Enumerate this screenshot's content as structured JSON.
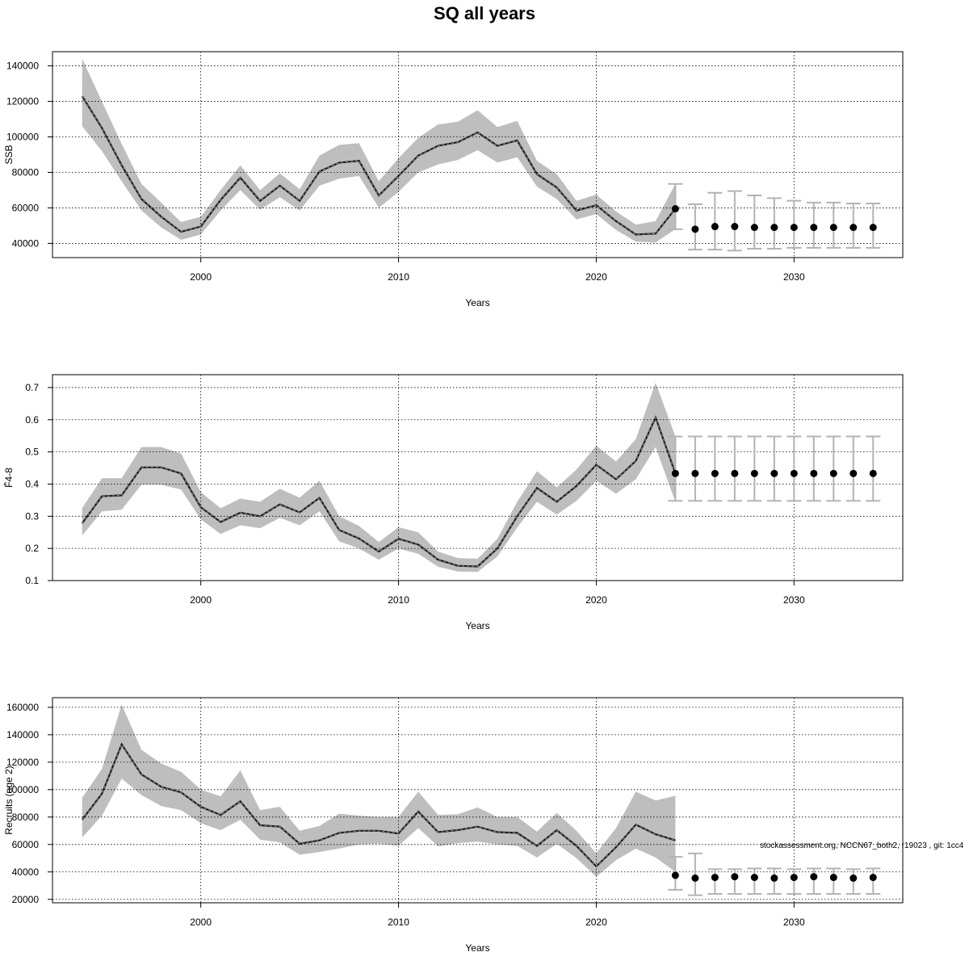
{
  "figure": {
    "title": "SQ all years",
    "footer": "stockassessment.org, NCCN67_both2, r19023 , git: 1cc4"
  },
  "colors": {
    "band": "#bebebe",
    "line": "#1a1a1a",
    "errorbar": "#b3b3b3",
    "point": "#000000",
    "grid": "#000000"
  },
  "chart_data": [
    {
      "type": "line",
      "title": "",
      "xlabel": "Years",
      "ylabel": "SSB",
      "xlim": [
        1992.5,
        2035.5
      ],
      "ylim": [
        32000,
        148000
      ],
      "xticks": [
        2000,
        2010,
        2020,
        2030
      ],
      "yticks": [
        40000,
        60000,
        80000,
        100000,
        120000,
        140000
      ],
      "grid": true,
      "estimate": {
        "x": [
          1994,
          1995,
          1996,
          1997,
          1998,
          1999,
          2000,
          2001,
          2002,
          2003,
          2004,
          2005,
          2006,
          2007,
          2008,
          2009,
          2010,
          2011,
          2012,
          2013,
          2014,
          2015,
          2016,
          2017,
          2018,
          2019,
          2020,
          2021,
          2022,
          2023,
          2024
        ],
        "y": [
          123000,
          105000,
          84000,
          65000,
          55000,
          46500,
          49500,
          64500,
          77000,
          64000,
          72500,
          64000,
          80500,
          85500,
          86500,
          67000,
          78000,
          89500,
          95000,
          97000,
          102500,
          95000,
          98000,
          79000,
          71500,
          58500,
          61500,
          52500,
          45000,
          45500,
          59500
        ],
        "lower": [
          106000,
          92000,
          75000,
          58500,
          49000,
          42000,
          45000,
          58500,
          70000,
          59000,
          66000,
          58500,
          72500,
          76500,
          78000,
          60000,
          69000,
          80000,
          84500,
          87000,
          92500,
          85500,
          88500,
          72000,
          65000,
          53500,
          56500,
          47500,
          41000,
          40500,
          48000
        ],
        "upper": [
          144000,
          120000,
          96000,
          73500,
          63000,
          52000,
          55000,
          70000,
          84000,
          70000,
          79500,
          70500,
          89500,
          95500,
          96500,
          75000,
          88000,
          99500,
          107000,
          108500,
          115000,
          105500,
          109000,
          86500,
          79000,
          64000,
          67500,
          58000,
          50500,
          52500,
          73500
        ]
      },
      "projection": {
        "x": [
          2024,
          2025,
          2026,
          2027,
          2028,
          2029,
          2030,
          2031,
          2032,
          2033,
          2034
        ],
        "y": [
          59500,
          48000,
          49500,
          49500,
          49000,
          49000,
          49000,
          49000,
          49000,
          49000,
          49000
        ],
        "lower": [
          48000,
          36500,
          36500,
          36000,
          37000,
          37000,
          37500,
          37500,
          37500,
          37500,
          37500
        ],
        "upper": [
          73500,
          62000,
          68500,
          69500,
          67000,
          65500,
          64000,
          63000,
          63000,
          62500,
          62500
        ]
      }
    },
    {
      "type": "line",
      "title": "",
      "xlabel": "Years",
      "ylabel": "F̄4-8",
      "xlim": [
        1992.5,
        2035.5
      ],
      "ylim": [
        0.1,
        0.74
      ],
      "xticks": [
        2000,
        2010,
        2020,
        2030
      ],
      "yticks": [
        0.1,
        0.2,
        0.3,
        0.4,
        0.5,
        0.6,
        0.7
      ],
      "yticklabels": [
        "0.1",
        "0.2",
        "0.3",
        "0.4",
        "0.5",
        "0.6",
        "0.7"
      ],
      "grid": true,
      "estimate": {
        "x": [
          1994,
          1995,
          1996,
          1997,
          1998,
          1999,
          2000,
          2001,
          2002,
          2003,
          2004,
          2005,
          2006,
          2007,
          2008,
          2009,
          2010,
          2011,
          2012,
          2013,
          2014,
          2015,
          2016,
          2017,
          2018,
          2019,
          2020,
          2021,
          2022,
          2023,
          2024
        ],
        "y": [
          0.278,
          0.362,
          0.365,
          0.452,
          0.452,
          0.433,
          0.328,
          0.282,
          0.311,
          0.3,
          0.337,
          0.312,
          0.357,
          0.257,
          0.231,
          0.19,
          0.23,
          0.212,
          0.165,
          0.146,
          0.144,
          0.2,
          0.3,
          0.388,
          0.345,
          0.394,
          0.46,
          0.415,
          0.472,
          0.607,
          0.433
        ],
        "lower": [
          0.24,
          0.315,
          0.32,
          0.398,
          0.398,
          0.383,
          0.29,
          0.245,
          0.272,
          0.263,
          0.295,
          0.272,
          0.315,
          0.222,
          0.2,
          0.165,
          0.2,
          0.183,
          0.143,
          0.128,
          0.127,
          0.175,
          0.265,
          0.345,
          0.305,
          0.348,
          0.41,
          0.37,
          0.415,
          0.515,
          0.345
        ],
        "upper": [
          0.325,
          0.418,
          0.418,
          0.515,
          0.515,
          0.495,
          0.375,
          0.325,
          0.355,
          0.345,
          0.385,
          0.358,
          0.41,
          0.3,
          0.27,
          0.22,
          0.266,
          0.25,
          0.19,
          0.17,
          0.168,
          0.23,
          0.345,
          0.44,
          0.39,
          0.445,
          0.52,
          0.47,
          0.54,
          0.715,
          0.548
        ]
      },
      "projection": {
        "x": [
          2024,
          2025,
          2026,
          2027,
          2028,
          2029,
          2030,
          2031,
          2032,
          2033,
          2034
        ],
        "y": [
          0.433,
          0.433,
          0.433,
          0.433,
          0.433,
          0.433,
          0.433,
          0.433,
          0.433,
          0.433,
          0.433
        ],
        "lower": [
          0.348,
          0.348,
          0.348,
          0.348,
          0.348,
          0.348,
          0.348,
          0.348,
          0.348,
          0.348,
          0.348
        ],
        "upper": [
          0.548,
          0.548,
          0.548,
          0.548,
          0.548,
          0.548,
          0.548,
          0.548,
          0.548,
          0.548,
          0.548
        ]
      }
    },
    {
      "type": "line",
      "title": "",
      "xlabel": "Years",
      "ylabel": "Recruits (age 2)",
      "xlim": [
        1992.5,
        2035.5
      ],
      "ylim": [
        17500,
        167000
      ],
      "xticks": [
        2000,
        2010,
        2020,
        2030
      ],
      "yticks": [
        20000,
        40000,
        60000,
        80000,
        100000,
        120000,
        140000,
        160000
      ],
      "grid": true,
      "estimate": {
        "x": [
          1994,
          1995,
          1996,
          1997,
          1998,
          1999,
          2000,
          2001,
          2002,
          2003,
          2004,
          2005,
          2006,
          2007,
          2008,
          2009,
          2010,
          2011,
          2012,
          2013,
          2014,
          2015,
          2016,
          2017,
          2018,
          2019,
          2020,
          2021,
          2022,
          2023,
          2024
        ],
        "y": [
          78000,
          97000,
          133000,
          111000,
          102000,
          98000,
          87500,
          81500,
          91500,
          74000,
          73000,
          60500,
          63000,
          68500,
          70000,
          70000,
          68000,
          84000,
          69000,
          70500,
          73000,
          69000,
          68500,
          59000,
          70500,
          59000,
          44000,
          58000,
          74500,
          67500,
          63000
        ],
        "lower": [
          65000,
          81000,
          108000,
          96000,
          88000,
          85000,
          75500,
          70500,
          78000,
          63500,
          61500,
          52500,
          54500,
          57000,
          60000,
          60500,
          59000,
          72000,
          58500,
          61000,
          62000,
          60000,
          59000,
          50500,
          60500,
          50000,
          36500,
          48500,
          57000,
          50500,
          40000
        ],
        "upper": [
          94000,
          115000,
          162000,
          129000,
          119000,
          113000,
          100000,
          95000,
          114000,
          85000,
          87500,
          70000,
          73500,
          82500,
          81000,
          80000,
          80000,
          98500,
          81500,
          82000,
          87000,
          80000,
          80000,
          69500,
          83000,
          70000,
          53500,
          72000,
          98500,
          92000,
          95500
        ]
      },
      "projection": {
        "x": [
          2024,
          2025,
          2026,
          2027,
          2028,
          2029,
          2030,
          2031,
          2032,
          2033,
          2034
        ],
        "y": [
          37500,
          35500,
          36000,
          36500,
          36000,
          35500,
          36000,
          36500,
          36000,
          35500,
          36000
        ],
        "lower": [
          27000,
          23000,
          24000,
          24000,
          24000,
          24000,
          24000,
          24000,
          24000,
          24000,
          24000
        ],
        "upper": [
          51000,
          53500,
          42000,
          42000,
          42500,
          42500,
          42000,
          42500,
          42500,
          42000,
          42500
        ]
      }
    }
  ]
}
